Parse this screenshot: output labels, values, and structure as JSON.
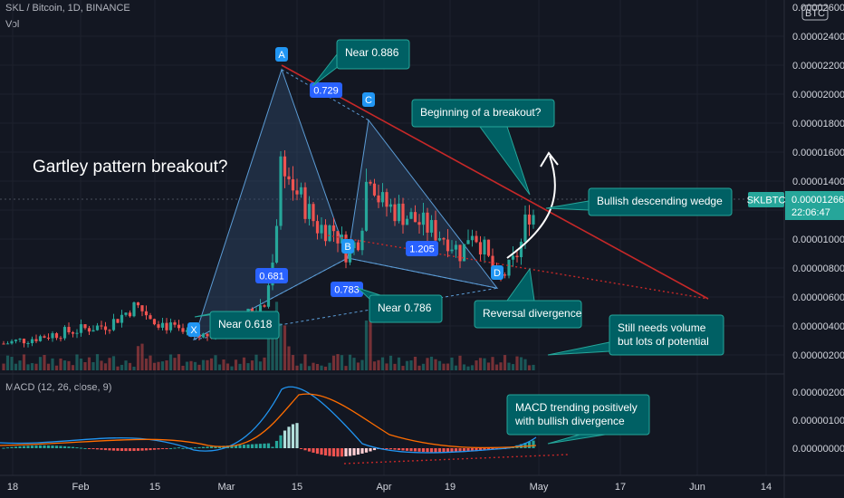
{
  "header": {
    "title": "SKL / Bitcoin, 1D, BINANCE",
    "volume_label": "Vol",
    "macd_label": "MACD (12, 26, close, 9)"
  },
  "colors": {
    "background": "#131722",
    "up": "#26a69a",
    "down": "#ef5350",
    "callout": "#006064",
    "callout_border": "#26a69a",
    "wedge_line": "#c62828",
    "fib_label": "#2962ff",
    "pattern_fill": "#2f4a6b",
    "macd_line": "#2196f3",
    "signal_line": "#ff6d00",
    "price_tag": "#26a69a"
  },
  "chart_data": {
    "type": "candlestick",
    "symbol": "SKLBTC",
    "currency_badge": "BTC",
    "last_price": "0.00001266",
    "countdown": "22:06:47",
    "y_ticks": [
      "0.00002400",
      "0.00002200",
      "0.00002000",
      "0.00001800",
      "0.00001600",
      "0.00001400",
      "0.00001200",
      "0.00001000",
      "0.00000800",
      "0.00000600",
      "0.00000400",
      "0.00000200"
    ],
    "y_top_partial": "0.00002600",
    "macd_ticks": [
      "0.00000200",
      "0.00000100",
      "0.00000000"
    ],
    "x_ticks": [
      "18",
      "Feb",
      "15",
      "Mar",
      "15",
      "Apr",
      "19",
      "May",
      "17",
      "Jun",
      "14"
    ],
    "pattern_points": [
      {
        "label": "X",
        "price": 4.85e-06
      },
      {
        "label": "A",
        "price": 2.19e-05
      },
      {
        "label": "B",
        "price": 1e-05
      },
      {
        "label": "C",
        "price": 1.87e-05
      },
      {
        "label": "D",
        "price": 8.1e-06
      }
    ],
    "fib_ratios": [
      "0.681",
      "0.729",
      "0.783",
      "1.205"
    ],
    "annotations": [
      "Gartley pattern breakout?",
      "Near 0.886",
      "Beginning of a breakout?",
      "Bullish descending wedge",
      "Near 0.618",
      "Near 0.786",
      "Reversal divergence",
      "Still needs volume",
      "but lots of potential",
      "MACD trending positively",
      "with bullish divergence"
    ]
  }
}
